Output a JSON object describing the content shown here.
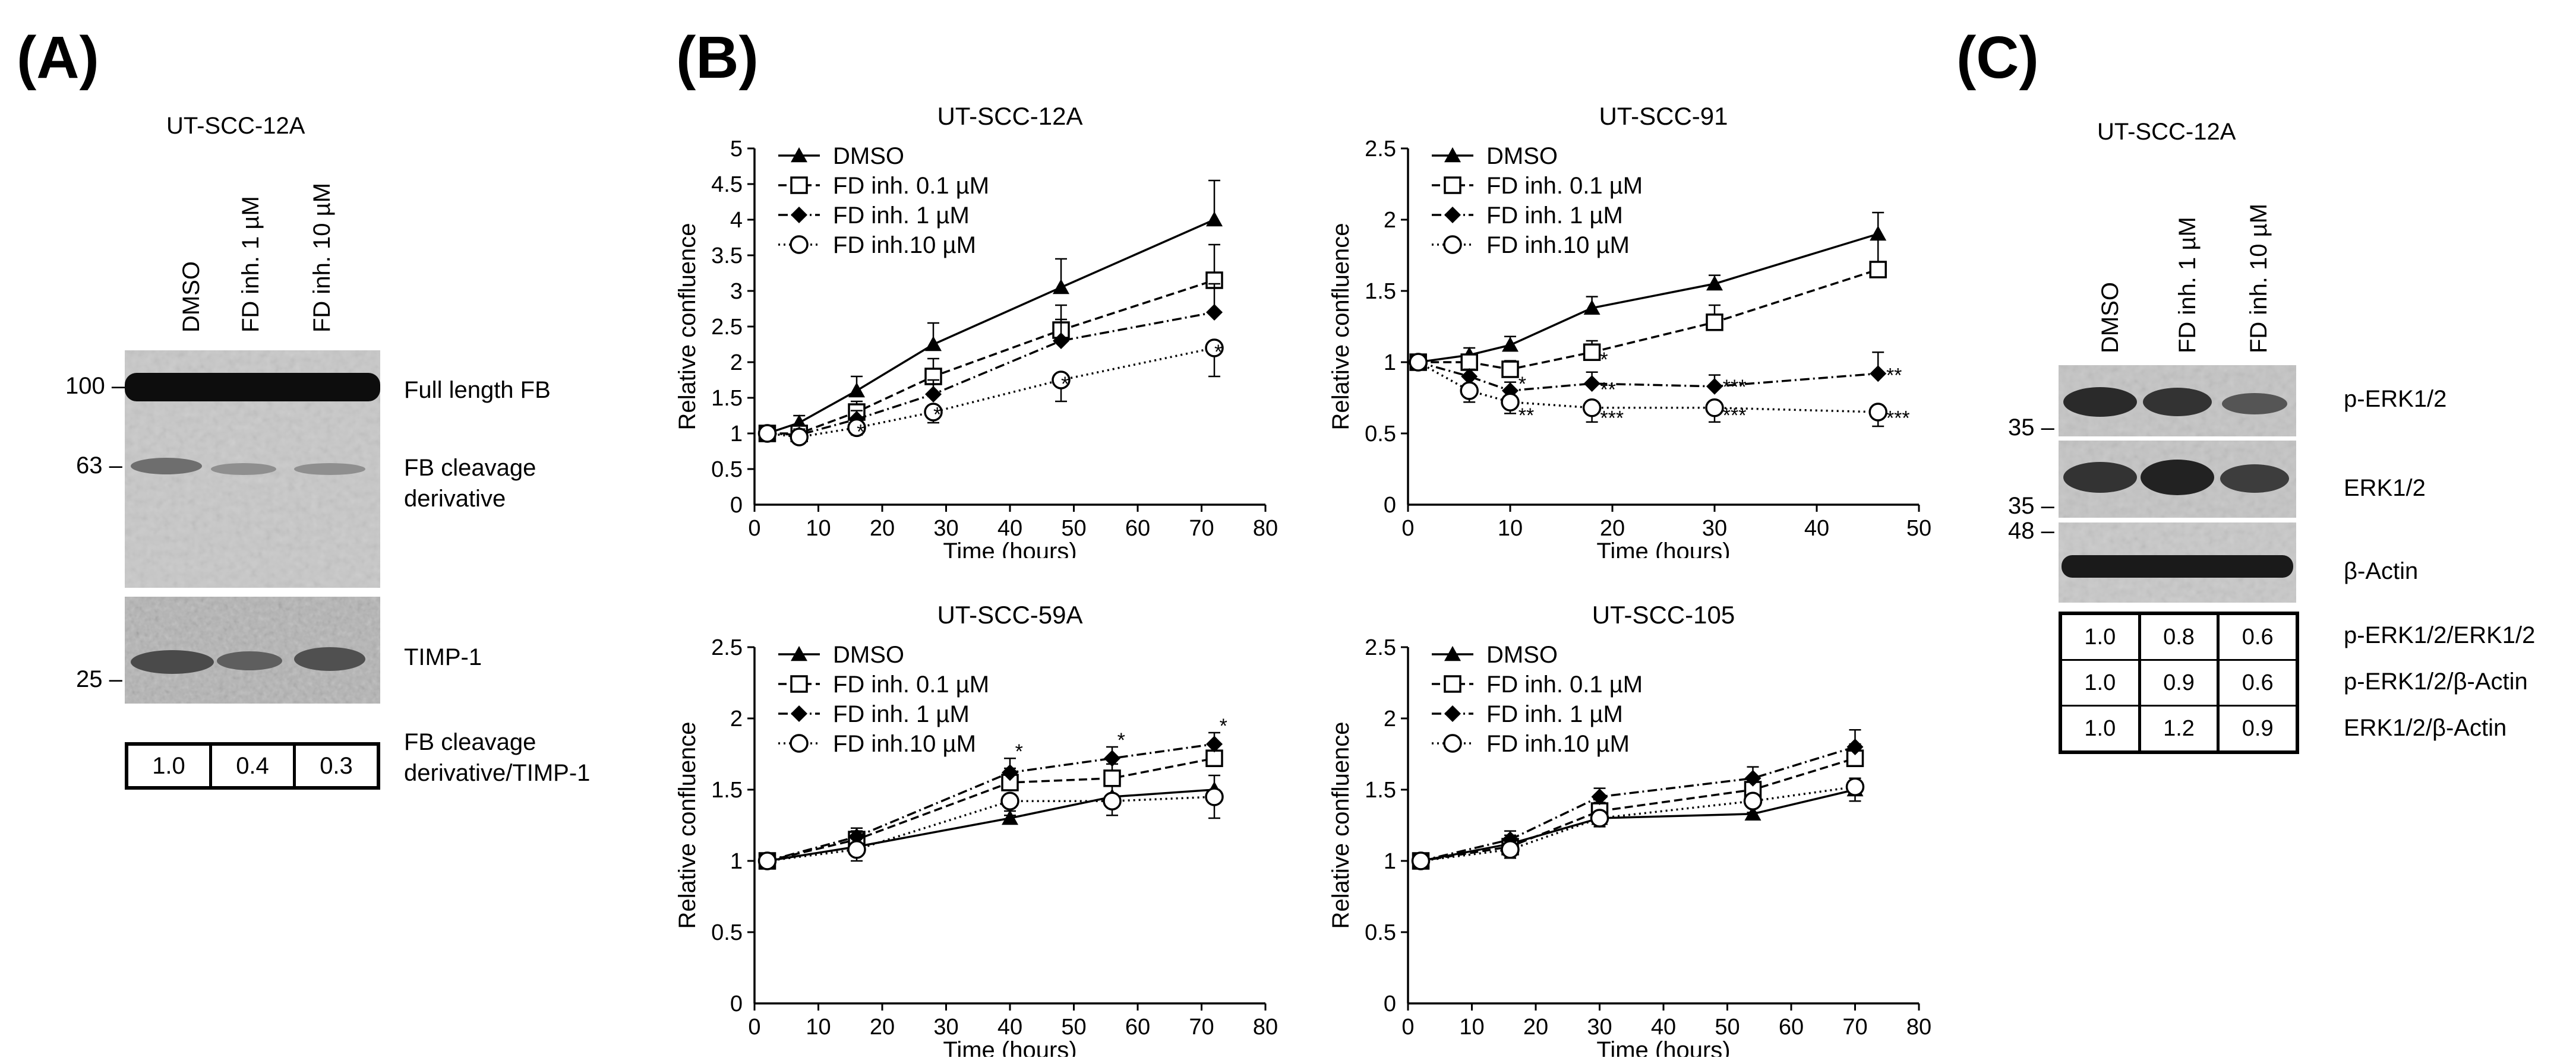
{
  "panelA": {
    "letter": "(A)",
    "title": "UT-SCC-12A",
    "lanes": [
      "DMSO",
      "FD inh. 1 µM",
      "FD inh. 10 µM"
    ],
    "markers": [
      "100",
      "63",
      "25"
    ],
    "bands": [
      "Full length FB",
      "FB cleavage derivative",
      "TIMP-1"
    ],
    "quant": {
      "values": [
        "1.0",
        "0.4",
        "0.3"
      ],
      "label_line1": "FB cleavage",
      "label_line2": "derivative/TIMP-1"
    }
  },
  "panelB": {
    "letter": "(B)",
    "legend": [
      "DMSO",
      "FD inh. 0.1 µM",
      "FD inh. 1 µM",
      "FD inh.10 µM"
    ]
  },
  "panelC": {
    "letter": "(C)",
    "title": "UT-SCC-12A",
    "lanes": [
      "DMSO",
      "FD inh. 1 µM",
      "FD inh. 10 µM"
    ],
    "markers": [
      "35",
      "35",
      "48"
    ],
    "bands": [
      "p-ERK1/2",
      "ERK1/2",
      "β-Actin"
    ],
    "quant_rows": [
      {
        "label": "p-ERK1/2/ERK1/2",
        "values": [
          "1.0",
          "0.8",
          "0.6"
        ]
      },
      {
        "label": "p-ERK1/2/β-Actin",
        "values": [
          "1.0",
          "0.9",
          "0.6"
        ]
      },
      {
        "label": "ERK1/2/β-Actin",
        "values": [
          "1.0",
          "1.2",
          "0.9"
        ]
      }
    ]
  },
  "chart_data": [
    {
      "type": "line",
      "title": "UT-SCC-12A",
      "xlabel": "Time (hours)",
      "ylabel": "Relative confluence",
      "xlim": [
        0,
        80
      ],
      "ylim": [
        0,
        5
      ],
      "xticks": [
        0,
        10,
        20,
        30,
        40,
        50,
        60,
        70,
        80
      ],
      "yticks": [
        0.5,
        1,
        1.5,
        2,
        2.5,
        3,
        3.5,
        4,
        4.5,
        5
      ],
      "x": [
        2,
        7,
        16,
        28,
        48,
        72
      ],
      "series": [
        {
          "name": "DMSO",
          "values": [
            1.0,
            1.15,
            1.6,
            2.25,
            3.05,
            4.0
          ],
          "err": [
            0.05,
            0.1,
            0.2,
            0.3,
            0.4,
            0.55
          ]
        },
        {
          "name": "FD inh. 0.1 µM",
          "values": [
            1.0,
            1.0,
            1.3,
            1.8,
            2.45,
            3.15
          ],
          "err": [
            0.05,
            0.08,
            0.15,
            0.25,
            0.35,
            0.5
          ]
        },
        {
          "name": "FD inh. 1 µM",
          "values": [
            1.0,
            0.98,
            1.2,
            1.55,
            2.3,
            2.7
          ],
          "err": [
            0.05,
            0.08,
            0.12,
            0.2,
            0.3,
            0.4
          ]
        },
        {
          "name": "FD inh.10 µM",
          "values": [
            1.0,
            0.95,
            1.08,
            1.3,
            1.75,
            2.2
          ],
          "err": [
            0.05,
            0.05,
            0.1,
            0.15,
            0.3,
            0.4
          ]
        }
      ],
      "annotations": [
        {
          "x": 16,
          "y": 0.93,
          "text": "*"
        },
        {
          "x": 28,
          "y": 1.17,
          "text": "*"
        },
        {
          "x": 48,
          "y": 1.6,
          "text": "*"
        },
        {
          "x": 72,
          "y": 2.05,
          "text": "*"
        }
      ]
    },
    {
      "type": "line",
      "title": "UT-SCC-91",
      "xlabel": "Time (hours)",
      "ylabel": "Relative confluence",
      "xlim": [
        0,
        50
      ],
      "ylim": [
        0,
        2.5
      ],
      "xticks": [
        0,
        10,
        20,
        30,
        40,
        50
      ],
      "yticks": [
        0.5,
        1,
        1.5,
        2,
        2.5
      ],
      "x": [
        1,
        6,
        10,
        18,
        30,
        46
      ],
      "series": [
        {
          "name": "DMSO",
          "values": [
            1.0,
            1.05,
            1.12,
            1.38,
            1.55,
            1.9
          ],
          "err": [
            0.03,
            0.05,
            0.06,
            0.08,
            0.06,
            0.15
          ]
        },
        {
          "name": "FD inh. 0.1 µM",
          "values": [
            1.0,
            1.0,
            0.95,
            1.07,
            1.28,
            1.65
          ],
          "err": [
            0.03,
            0.05,
            0.06,
            0.08,
            0.12,
            0.22
          ]
        },
        {
          "name": "FD inh. 1 µM",
          "values": [
            1.0,
            0.9,
            0.8,
            0.85,
            0.83,
            0.92
          ],
          "err": [
            0.03,
            0.05,
            0.06,
            0.08,
            0.08,
            0.15
          ]
        },
        {
          "name": "FD inh.10 µM",
          "values": [
            1.0,
            0.8,
            0.72,
            0.68,
            0.68,
            0.65
          ],
          "err": [
            0.03,
            0.08,
            0.08,
            0.1,
            0.1,
            0.1
          ]
        }
      ],
      "annotations": [
        {
          "x": 18.8,
          "y": 0.97,
          "text": "*"
        },
        {
          "x": 10.8,
          "y": 0.8,
          "text": "*"
        },
        {
          "x": 10.8,
          "y": 0.58,
          "text": "**"
        },
        {
          "x": 18.8,
          "y": 0.76,
          "text": "**"
        },
        {
          "x": 18.8,
          "y": 0.56,
          "text": "***"
        },
        {
          "x": 30.8,
          "y": 0.78,
          "text": "***"
        },
        {
          "x": 30.8,
          "y": 0.58,
          "text": "***"
        },
        {
          "x": 46.8,
          "y": 0.86,
          "text": "**"
        },
        {
          "x": 46.8,
          "y": 0.56,
          "text": "***"
        }
      ]
    },
    {
      "type": "line",
      "title": "UT-SCC-59A",
      "xlabel": "Time (hours)",
      "ylabel": "Relative confluence",
      "xlim": [
        0,
        80
      ],
      "ylim": [
        0,
        2.5
      ],
      "xticks": [
        0,
        10,
        20,
        30,
        40,
        50,
        60,
        70,
        80
      ],
      "yticks": [
        0.5,
        1,
        1.5,
        2,
        2.5
      ],
      "x": [
        2,
        16,
        40,
        56,
        72
      ],
      "series": [
        {
          "name": "DMSO",
          "values": [
            1.0,
            1.1,
            1.3,
            1.45,
            1.5
          ],
          "err": [
            0.02,
            0.06,
            0.05,
            0.08,
            0.1
          ]
        },
        {
          "name": "FD inh. 0.1 µM",
          "values": [
            1.0,
            1.15,
            1.55,
            1.58,
            1.72
          ],
          "err": [
            0.02,
            0.06,
            0.1,
            0.1,
            0.1
          ]
        },
        {
          "name": "FD inh. 1 µM",
          "values": [
            1.0,
            1.17,
            1.62,
            1.72,
            1.82
          ],
          "err": [
            0.02,
            0.06,
            0.1,
            0.08,
            0.08
          ]
        },
        {
          "name": "FD inh.10 µM",
          "values": [
            1.0,
            1.08,
            1.42,
            1.42,
            1.45
          ],
          "err": [
            0.02,
            0.08,
            0.1,
            0.1,
            0.15
          ]
        }
      ],
      "annotations": [
        {
          "x": 40.8,
          "y": 1.72,
          "text": "*"
        },
        {
          "x": 56.8,
          "y": 1.8,
          "text": "*"
        },
        {
          "x": 72.8,
          "y": 1.9,
          "text": "*"
        }
      ]
    },
    {
      "type": "line",
      "title": "UT-SCC-105",
      "xlabel": "Time (hours)",
      "ylabel": "Relative confluence",
      "xlim": [
        0,
        80
      ],
      "ylim": [
        0,
        2.5
      ],
      "xticks": [
        0,
        10,
        20,
        30,
        40,
        50,
        60,
        70,
        80
      ],
      "yticks": [
        0.5,
        1,
        1.5,
        2,
        2.5
      ],
      "x": [
        2,
        16,
        30,
        54,
        70
      ],
      "series": [
        {
          "name": "DMSO",
          "values": [
            1.0,
            1.12,
            1.3,
            1.33,
            1.5
          ],
          "err": [
            0.02,
            0.06,
            0.06,
            0.06,
            0.08
          ]
        },
        {
          "name": "FD inh. 0.1 µM",
          "values": [
            1.0,
            1.1,
            1.35,
            1.5,
            1.72
          ],
          "err": [
            0.02,
            0.06,
            0.06,
            0.08,
            0.1
          ]
        },
        {
          "name": "FD inh. 1 µM",
          "values": [
            1.0,
            1.15,
            1.45,
            1.58,
            1.8
          ],
          "err": [
            0.02,
            0.06,
            0.06,
            0.08,
            0.12
          ]
        },
        {
          "name": "FD inh.10 µM",
          "values": [
            1.0,
            1.08,
            1.3,
            1.42,
            1.52
          ],
          "err": [
            0.02,
            0.06,
            0.06,
            0.08,
            0.1
          ]
        }
      ],
      "annotations": []
    }
  ]
}
